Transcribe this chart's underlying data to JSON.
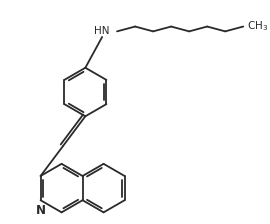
{
  "bg_color": "#ffffff",
  "line_color": "#2a2a2a",
  "line_width": 1.3,
  "font_size": 7.5,
  "fig_width": 2.7,
  "fig_height": 2.24,
  "dpi": 100
}
